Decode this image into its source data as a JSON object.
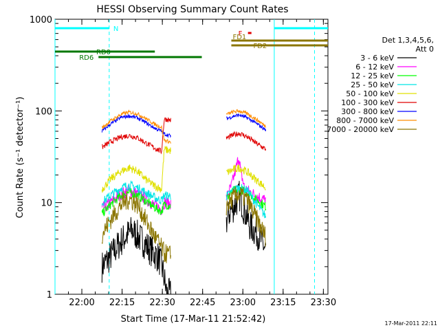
{
  "chart_data": {
    "type": "line",
    "title": "HESSI Observing Summary Count Rates",
    "xlabel": "Start Time (17-Mar-11 21:52:42)",
    "ylabel": "Count Rate (s⁻¹ detector⁻¹)",
    "timestamp": "17-Mar-2011 22:11",
    "x_range_min": [
      -2.7,
      99
    ],
    "y_range": [
      1,
      1000
    ],
    "y_scale": "log",
    "x_ticks": [
      {
        "t": 7.3,
        "label": "22:00"
      },
      {
        "t": 22.3,
        "label": "22:15"
      },
      {
        "t": 37.3,
        "label": "22:30"
      },
      {
        "t": 52.3,
        "label": "22:45"
      },
      {
        "t": 67.3,
        "label": "23:00"
      },
      {
        "t": 82.3,
        "label": "23:15"
      },
      {
        "t": 97.3,
        "label": "23:30"
      }
    ],
    "y_ticks": [
      {
        "v": 1,
        "label": "1"
      },
      {
        "v": 10,
        "label": "10"
      },
      {
        "v": 100,
        "label": "100"
      },
      {
        "v": 1000,
        "label": "1000"
      }
    ],
    "legend": {
      "header": [
        "Det 1,3,4,5,6,",
        "Att 0"
      ],
      "entries": [
        {
          "label": "3 - 6 keV",
          "color": "#000000"
        },
        {
          "label": "6 - 12 keV",
          "color": "#ff00ff"
        },
        {
          "label": "12 - 25 keV",
          "color": "#00ff00"
        },
        {
          "label": "25 - 50 keV",
          "color": "#00e5e5"
        },
        {
          "label": "50 - 100 keV",
          "color": "#e0e000"
        },
        {
          "label": "100 - 300 keV",
          "color": "#e00000"
        },
        {
          "label": "300 - 800 keV",
          "color": "#0000ff"
        },
        {
          "label": "800 - 7000 keV",
          "color": "#ff8c00"
        },
        {
          "label": "7000 - 20000 keV",
          "color": "#8b7500"
        }
      ]
    },
    "data_gaps_min": [
      [
        10.6,
        14.7
      ],
      [
        40.5,
        61.0
      ]
    ],
    "series": [
      {
        "color": "#000000",
        "values": [
          [
            14.8,
            2.0
          ],
          [
            18,
            2.6
          ],
          [
            22,
            3.8
          ],
          [
            26,
            5.0
          ],
          [
            30,
            3.8
          ],
          [
            33,
            3.0
          ],
          [
            36,
            2.5
          ],
          [
            37.5,
            1.8
          ],
          [
            39,
            1.0
          ],
          [
            44,
            1.0
          ],
          [
            49,
            1.0
          ],
          [
            51.8,
            1.4
          ],
          [
            54,
            3.6
          ],
          [
            58,
            4.5
          ],
          [
            61,
            6.0
          ],
          [
            62.5,
            8.0
          ],
          [
            64.5,
            9.5
          ],
          [
            66,
            12.0
          ],
          [
            68,
            8.0
          ],
          [
            70,
            5.5
          ],
          [
            73,
            4.5
          ],
          [
            75.9,
            3.0
          ]
        ]
      },
      {
        "color": "#ff00ff",
        "values": [
          [
            14.8,
            8.5
          ],
          [
            18,
            10.0
          ],
          [
            22,
            12.5
          ],
          [
            25,
            13.5
          ],
          [
            28,
            12.5
          ],
          [
            31,
            11.0
          ],
          [
            34,
            9.5
          ],
          [
            37,
            8.5
          ],
          [
            38,
            10.0
          ],
          [
            44,
            9.5
          ],
          [
            51.7,
            10.0
          ],
          [
            52,
            8.0
          ],
          [
            57,
            9.5
          ],
          [
            61,
            11.0
          ],
          [
            63,
            15.0
          ],
          [
            64.8,
            24.0
          ],
          [
            65.8,
            32.0
          ],
          [
            66.5,
            22.0
          ],
          [
            68,
            14.0
          ],
          [
            72,
            12.0
          ],
          [
            75.9,
            10.5
          ]
        ]
      },
      {
        "color": "#00ff00",
        "values": [
          [
            14.8,
            7.5
          ],
          [
            18,
            9.5
          ],
          [
            22,
            12.0
          ],
          [
            25,
            13.0
          ],
          [
            28,
            12.0
          ],
          [
            31,
            10.5
          ],
          [
            34,
            9.0
          ],
          [
            37,
            8.0
          ],
          [
            38,
            9.5
          ],
          [
            44,
            9.0
          ],
          [
            51.7,
            9.5
          ],
          [
            52,
            7.0
          ],
          [
            57,
            9.0
          ],
          [
            61,
            11.0
          ],
          [
            64,
            13.5
          ],
          [
            66,
            14.0
          ],
          [
            69,
            13.0
          ],
          [
            72,
            11.0
          ],
          [
            75.9,
            9.0
          ]
        ]
      },
      {
        "color": "#00e5e5",
        "values": [
          [
            14.8,
            10.0
          ],
          [
            18,
            12.0
          ],
          [
            22,
            14.5
          ],
          [
            25,
            15.5
          ],
          [
            28,
            14.5
          ],
          [
            31,
            13.0
          ],
          [
            34,
            11.5
          ],
          [
            37,
            10.5
          ],
          [
            38,
            12.0
          ],
          [
            44,
            11.5
          ],
          [
            51.7,
            12.5
          ],
          [
            52,
            6.5
          ],
          [
            57,
            8.5
          ],
          [
            61,
            11.5
          ],
          [
            64,
            14.0
          ],
          [
            66,
            14.5
          ],
          [
            69,
            13.5
          ],
          [
            72,
            10.0
          ],
          [
            75.9,
            7.0
          ]
        ]
      },
      {
        "color": "#e0e000",
        "values": [
          [
            14.8,
            14.0
          ],
          [
            18,
            18.0
          ],
          [
            22,
            22.0
          ],
          [
            25,
            24.0
          ],
          [
            28,
            22.0
          ],
          [
            31,
            18.0
          ],
          [
            34,
            15.5
          ],
          [
            37,
            14.0
          ],
          [
            38,
            38.0
          ],
          [
            44,
            35.0
          ],
          [
            51.7,
            37.0
          ],
          [
            52,
            14.0
          ],
          [
            57,
            18.0
          ],
          [
            61,
            21.0
          ],
          [
            64,
            23.0
          ],
          [
            66,
            24.0
          ],
          [
            69,
            21.5
          ],
          [
            72,
            18.0
          ],
          [
            75.9,
            14.5
          ]
        ]
      },
      {
        "color": "#e00000",
        "values": [
          [
            14.8,
            40.0
          ],
          [
            18,
            46.0
          ],
          [
            22,
            52.0
          ],
          [
            25,
            54.0
          ],
          [
            28,
            51.0
          ],
          [
            31,
            45.0
          ],
          [
            34,
            40.0
          ],
          [
            37,
            36.0
          ],
          [
            38,
            82.0
          ],
          [
            44,
            75.0
          ],
          [
            51.7,
            78.0
          ],
          [
            52,
            35.0
          ],
          [
            57,
            42.0
          ],
          [
            61,
            50.0
          ],
          [
            64,
            55.0
          ],
          [
            66,
            57.0
          ],
          [
            69,
            52.0
          ],
          [
            72,
            45.0
          ],
          [
            75.9,
            38.0
          ]
        ]
      },
      {
        "color": "#0000ff",
        "values": [
          [
            14.8,
            60.0
          ],
          [
            18,
            72.0
          ],
          [
            22,
            85.0
          ],
          [
            25,
            88.0
          ],
          [
            28,
            84.0
          ],
          [
            31,
            75.0
          ],
          [
            34,
            66.0
          ],
          [
            37,
            60.0
          ],
          [
            38,
            56.0
          ],
          [
            44,
            50.0
          ],
          [
            51.7,
            52.0
          ],
          [
            52,
            60.0
          ],
          [
            57,
            72.0
          ],
          [
            61,
            82.0
          ],
          [
            64,
            88.0
          ],
          [
            66,
            90.0
          ],
          [
            69,
            84.0
          ],
          [
            72,
            74.0
          ],
          [
            75.9,
            62.0
          ]
        ]
      },
      {
        "color": "#ff8c00",
        "values": [
          [
            14.8,
            65.0
          ],
          [
            18,
            78.0
          ],
          [
            22,
            92.0
          ],
          [
            25,
            97.0
          ],
          [
            28,
            93.0
          ],
          [
            31,
            83.0
          ],
          [
            34,
            73.0
          ],
          [
            37,
            66.0
          ],
          [
            38,
            48.0
          ],
          [
            44,
            42.0
          ],
          [
            51.7,
            45.0
          ],
          [
            52,
            66.0
          ],
          [
            57,
            80.0
          ],
          [
            61,
            91.0
          ],
          [
            64,
            98.0
          ],
          [
            66,
            100.0
          ],
          [
            69,
            93.0
          ],
          [
            72,
            82.0
          ],
          [
            75.9,
            68.0
          ]
        ]
      },
      {
        "color": "#8b7500",
        "values": [
          [
            14.8,
            4.5
          ],
          [
            18,
            6.5
          ],
          [
            22,
            9.5
          ],
          [
            25,
            11.0
          ],
          [
            28,
            9.5
          ],
          [
            31,
            6.5
          ],
          [
            34,
            4.5
          ],
          [
            37,
            3.2
          ],
          [
            38,
            2.8
          ],
          [
            44,
            2.5
          ],
          [
            51.7,
            2.8
          ],
          [
            52,
            3.0
          ],
          [
            57,
            5.5
          ],
          [
            61,
            9.0
          ],
          [
            64,
            11.5
          ],
          [
            66,
            12.5
          ],
          [
            69,
            10.5
          ],
          [
            72,
            7.0
          ],
          [
            75.9,
            4.2
          ]
        ]
      }
    ],
    "flags": [
      {
        "label": "N",
        "t_start": -2.7,
        "t_end": 17.5,
        "y_row": 1,
        "color": "#00ffff",
        "dashed_marker_t": 17.5
      },
      {
        "label": "N",
        "t_start": 79.0,
        "t_end": 99.0,
        "y_row": 1,
        "color": "#00ffff",
        "dashed_marker_t": 94.0,
        "show_label": false
      },
      {
        "label": "F",
        "t_start": 69.2,
        "t_end": 70.5,
        "y_row": 2,
        "color": "#e00000"
      },
      {
        "label": "FD1",
        "t_start": 63.0,
        "t_end": 99.0,
        "y_row": 3,
        "color": "#8b7500"
      },
      {
        "label": "FD2",
        "t_start": 63.0,
        "t_end": 99.0,
        "y_row": 4,
        "color": "#8b7500"
      },
      {
        "label": "RD0",
        "t_start": -2.7,
        "t_end": 34.5,
        "y_row": 5,
        "color": "#007700"
      },
      {
        "label": "RD6",
        "t_start": 13.5,
        "t_end": 52.0,
        "y_row": 6,
        "color": "#007700"
      }
    ],
    "vertical_markers": [
      {
        "t": 17.5,
        "style": "dashed",
        "color": "#00ffff"
      },
      {
        "t": 94.0,
        "style": "dashed",
        "color": "#00ffff"
      },
      {
        "t": -2.7,
        "style": "solid",
        "color": "#00ffff"
      },
      {
        "t": 79.0,
        "style": "solid",
        "color": "#00ffff"
      }
    ]
  }
}
